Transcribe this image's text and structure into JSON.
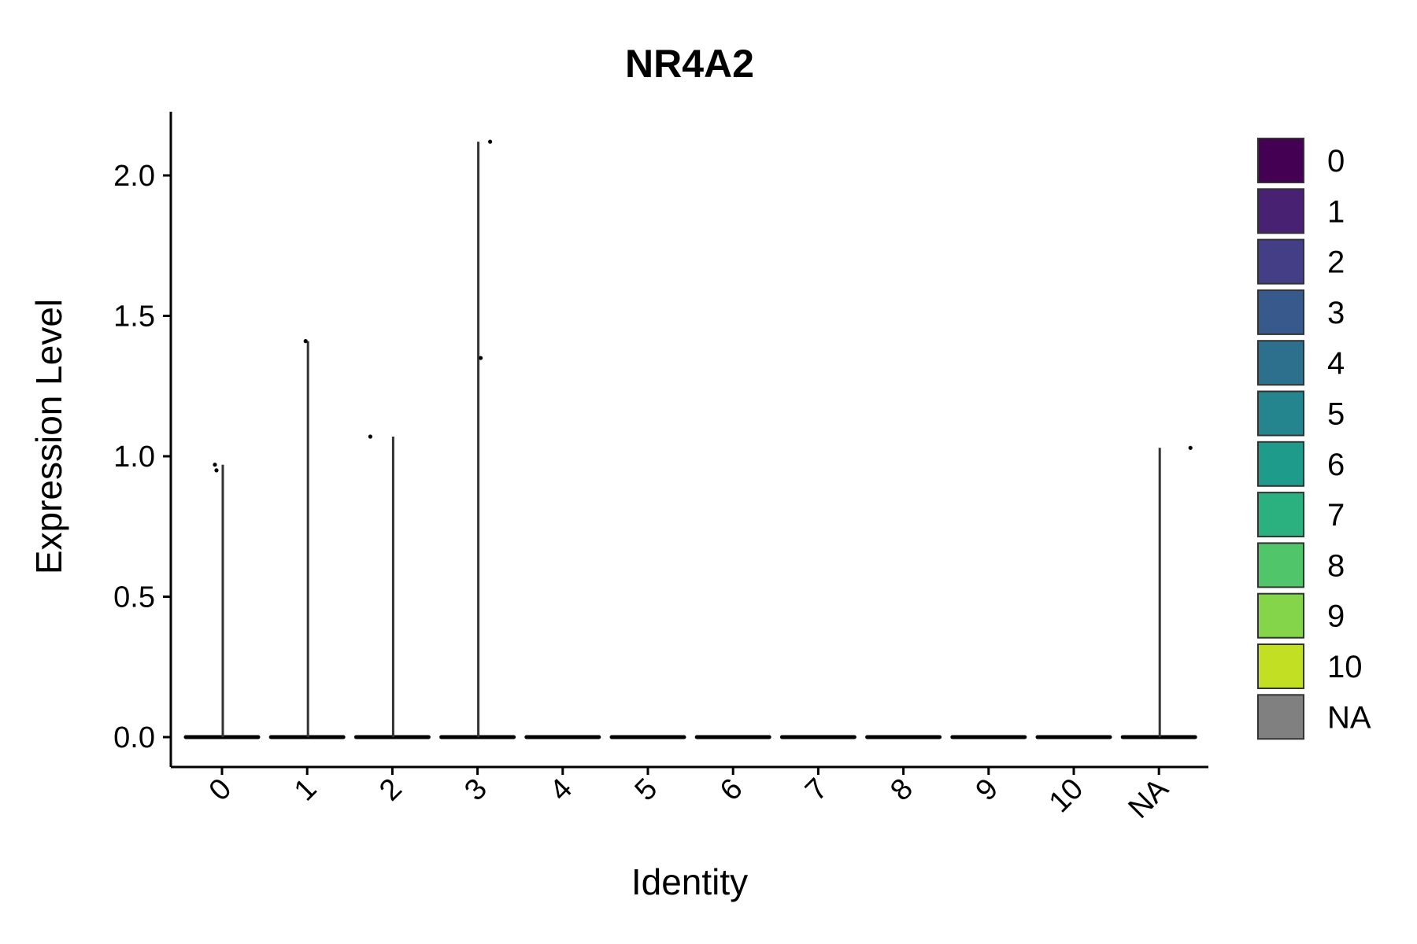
{
  "chart_data": {
    "type": "violin",
    "title": "NR4A2",
    "xlabel": "Identity",
    "ylabel": "Expression Level",
    "ylim": [
      -0.1,
      2.23
    ],
    "y_ticks": [
      0.0,
      0.5,
      1.0,
      1.5,
      2.0
    ],
    "y_tick_labels": [
      "0.0",
      "0.5",
      "1.0",
      "1.5",
      "2.0"
    ],
    "categories": [
      "0",
      "1",
      "2",
      "3",
      "4",
      "5",
      "6",
      "7",
      "8",
      "9",
      "10",
      "NA"
    ],
    "max_expression": [
      0.97,
      1.41,
      1.07,
      2.12,
      0.0,
      0.0,
      0.0,
      0.0,
      0.0,
      0.0,
      0.0,
      1.03
    ],
    "outlier_points": [
      {
        "category": "0",
        "y": 0.97
      },
      {
        "category": "0",
        "y": 0.95
      },
      {
        "category": "1",
        "y": 1.41
      },
      {
        "category": "2",
        "y": 1.07
      },
      {
        "category": "3",
        "y": 2.12
      },
      {
        "category": "3",
        "y": 1.35
      },
      {
        "category": "NA",
        "y": 1.03
      }
    ],
    "legend": {
      "placement": "right",
      "entries": [
        {
          "label": "0",
          "color": "#440154"
        },
        {
          "label": "1",
          "color": "#482173"
        },
        {
          "label": "2",
          "color": "#433E85"
        },
        {
          "label": "3",
          "color": "#38598C"
        },
        {
          "label": "4",
          "color": "#2D708E"
        },
        {
          "label": "5",
          "color": "#25858E"
        },
        {
          "label": "6",
          "color": "#1E9B8A"
        },
        {
          "label": "7",
          "color": "#2BB07F"
        },
        {
          "label": "8",
          "color": "#51C56A"
        },
        {
          "label": "9",
          "color": "#85D54A"
        },
        {
          "label": "10",
          "color": "#C2DF23"
        },
        {
          "label": "NA",
          "color": "#808080"
        }
      ]
    },
    "grid": false
  }
}
